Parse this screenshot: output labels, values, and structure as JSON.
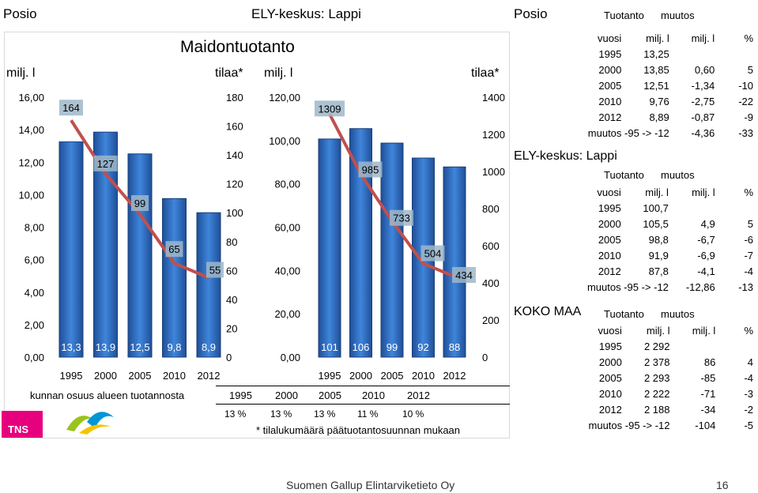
{
  "header": {
    "left_title": "Posio",
    "center_title": "ELY-keskus: Lappi",
    "right_title": "Posio",
    "right_col1": "Tuotanto",
    "right_col2": "muutos"
  },
  "chart_title": "Maidontuotanto",
  "axis_labels": {
    "left_unit": "milj. l",
    "left_tilaa": "tilaa*",
    "right_unit": "milj. l",
    "right_tilaa": "tilaa*"
  },
  "chart_data": [
    {
      "type": "bar",
      "categories": [
        "1995",
        "2000",
        "2005",
        "2010",
        "2012"
      ],
      "series": [
        {
          "values": [
            13.25,
            13.85,
            12.51,
            9.76,
            8.89
          ],
          "data_labels": [
            "13,3",
            "13,9",
            "12,5",
            "9,8",
            "8,9"
          ]
        },
        {
          "type": "line",
          "axis": "secondary",
          "values": [
            164,
            127,
            99,
            65,
            55
          ],
          "data_labels": [
            "164",
            "127",
            "99",
            "65",
            "55"
          ]
        }
      ],
      "ylim": [
        0,
        16
      ],
      "yticks": [
        "0,00",
        "2,00",
        "4,00",
        "6,00",
        "8,00",
        "10,00",
        "12,00",
        "14,00",
        "16,00"
      ],
      "y2lim": [
        0,
        180
      ],
      "y2ticks": [
        "0",
        "20",
        "40",
        "60",
        "80",
        "100",
        "120",
        "140",
        "160",
        "180"
      ],
      "colors": {
        "bar": "#2f6fc4",
        "line": "#c0504d"
      }
    },
    {
      "type": "bar",
      "categories": [
        "1995",
        "2000",
        "2005",
        "2010",
        "2012"
      ],
      "series": [
        {
          "values": [
            100.7,
            105.5,
            98.8,
            91.9,
            87.8
          ],
          "data_labels": [
            "101",
            "106",
            "99",
            "92",
            "88"
          ]
        },
        {
          "type": "line",
          "axis": "secondary",
          "values": [
            1309,
            985,
            733,
            504,
            434
          ],
          "data_labels": [
            "1309",
            "985",
            "733",
            "504",
            "434"
          ]
        }
      ],
      "ylim": [
        0,
        120
      ],
      "yticks": [
        "0,00",
        "20,00",
        "40,00",
        "60,00",
        "80,00",
        "100,00",
        "120,00"
      ],
      "y2lim": [
        0,
        1400
      ],
      "y2ticks": [
        "0",
        "200",
        "400",
        "600",
        "800",
        "1000",
        "1200",
        "1400"
      ],
      "colors": {
        "bar": "#2f6fc4",
        "line": "#c0504d"
      }
    }
  ],
  "share": {
    "label": "kunnan osuus alueen tuotannosta",
    "years": [
      "1995",
      "2000",
      "2005",
      "2010",
      "2012"
    ],
    "values": [
      "13 %",
      "13 %",
      "13 %",
      "11 %",
      "10 %"
    ]
  },
  "footnote": "* tilalukumäärä päätuotantosuunnan mukaan",
  "logo_text": "TNS",
  "tables": {
    "posio": {
      "head": [
        "vuosi",
        "milj. l",
        "milj. l",
        "%"
      ],
      "rows": [
        [
          "1995",
          "13,25",
          "",
          ""
        ],
        [
          "2000",
          "13,85",
          "0,60",
          "5"
        ],
        [
          "2005",
          "12,51",
          "-1,34",
          "-10"
        ],
        [
          "2010",
          "9,76",
          "-2,75",
          "-22"
        ],
        [
          "2012",
          "8,89",
          "-0,87",
          "-9"
        ],
        [
          "muutos -95 -> -12",
          "",
          "-4,36",
          "-33"
        ]
      ]
    },
    "ely": {
      "title": "ELY-keskus: Lappi",
      "col1": "Tuotanto",
      "col2": "muutos",
      "head": [
        "vuosi",
        "milj. l",
        "milj. l",
        "%"
      ],
      "rows": [
        [
          "1995",
          "100,7",
          "",
          ""
        ],
        [
          "2000",
          "105,5",
          "4,9",
          "5"
        ],
        [
          "2005",
          "98,8",
          "-6,7",
          "-6"
        ],
        [
          "2010",
          "91,9",
          "-6,9",
          "-7"
        ],
        [
          "2012",
          "87,8",
          "-4,1",
          "-4"
        ],
        [
          "muutos -95 -> -12",
          "",
          "-12,86",
          "-13"
        ]
      ]
    },
    "koko": {
      "title": "KOKO MAA",
      "col1": "Tuotanto",
      "col2": "muutos",
      "head": [
        "vuosi",
        "milj. l",
        "milj. l",
        "%"
      ],
      "rows": [
        [
          "1995",
          "2 292",
          "",
          ""
        ],
        [
          "2000",
          "2 378",
          "86",
          "4"
        ],
        [
          "2005",
          "2 293",
          "-85",
          "-4"
        ],
        [
          "2010",
          "2 222",
          "-71",
          "-3"
        ],
        [
          "2012",
          "2 188",
          "-34",
          "-2"
        ],
        [
          "muutos -95 -> -12",
          "",
          "-104",
          "-5"
        ]
      ]
    }
  },
  "footer": {
    "text": "Suomen Gallup Elintarviketieto Oy",
    "page": "16"
  }
}
